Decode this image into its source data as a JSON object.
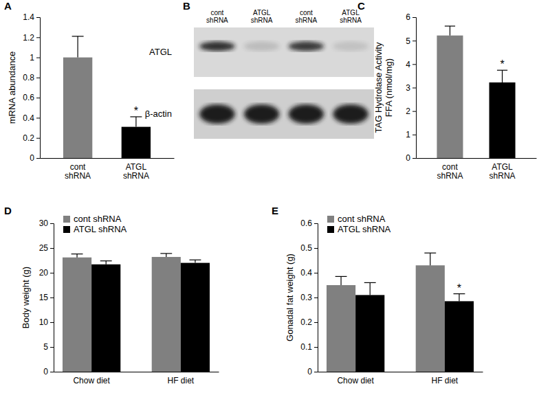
{
  "chart_data": [
    {
      "type": "bar",
      "title": "A",
      "categories": [
        "cont shRNA",
        "ATGL shRNA"
      ],
      "values": [
        1.0,
        0.31
      ],
      "errors": [
        0.21,
        0.1
      ],
      "colors": [
        "#808080",
        "#000000"
      ],
      "y_label": [
        "mRNA abundance"
      ],
      "ylim": [
        0,
        1.4
      ],
      "yticks": [
        0,
        0.2,
        0.4,
        0.6,
        0.8,
        1,
        1.2,
        1.4
      ],
      "annotations": [
        {
          "text": "*",
          "index": 1
        }
      ]
    },
    {
      "type": "bar",
      "title": "C",
      "categories": [
        "cont shRNA",
        "ATGL shRNA"
      ],
      "values": [
        5.22,
        3.22
      ],
      "errors": [
        0.4,
        0.52
      ],
      "colors": [
        "#808080",
        "#000000"
      ],
      "y_label": [
        "TAG Hydrolase Activity",
        "FFA (nmol/mg)"
      ],
      "ylim": [
        0,
        6
      ],
      "yticks": [
        0,
        1,
        2,
        3,
        4,
        5,
        6
      ],
      "annotations": [
        {
          "text": "*",
          "index": 1
        }
      ]
    },
    {
      "type": "bar",
      "title": "D",
      "categories": [
        "Chow diet",
        "HF diet"
      ],
      "series": [
        {
          "name": "cont shRNA",
          "color": "#808080",
          "values": [
            23.1,
            23.2
          ],
          "errors": [
            0.7,
            0.7
          ]
        },
        {
          "name": "ATGL shRNA",
          "color": "#000000",
          "values": [
            21.7,
            22.0
          ],
          "errors": [
            0.7,
            0.6
          ]
        }
      ],
      "y_label": [
        "Body weight (g)"
      ],
      "ylim": [
        0,
        30
      ],
      "yticks": [
        0,
        5,
        10,
        15,
        20,
        25,
        30
      ],
      "legend": "upper left"
    },
    {
      "type": "bar",
      "title": "E",
      "categories": [
        "Chow diet",
        "HF diet"
      ],
      "series": [
        {
          "name": "cont shRNA",
          "color": "#808080",
          "values": [
            0.35,
            0.43
          ],
          "errors": [
            0.035,
            0.05
          ]
        },
        {
          "name": "ATGL shRNA",
          "color": "#000000",
          "values": [
            0.31,
            0.285
          ],
          "errors": [
            0.05,
            0.03
          ]
        }
      ],
      "y_label": [
        "Gonadal fat weight (g)"
      ],
      "ylim": [
        0,
        0.6
      ],
      "yticks": [
        0,
        0.1,
        0.2,
        0.3,
        0.4,
        0.5,
        0.6
      ],
      "legend": "upper left",
      "annotations": [
        {
          "text": "*",
          "index": 1,
          "series": 1
        }
      ]
    }
  ],
  "blot": {
    "title": "B",
    "lanes": [
      "cont shRNA",
      "ATGL shRNA",
      "cont shRNA",
      "ATGL shRNA"
    ],
    "rows": [
      "ATGL",
      "β-actin"
    ],
    "bands": [
      [
        0.9,
        0.15,
        0.85,
        0.12
      ],
      [
        1,
        1,
        1,
        1
      ]
    ]
  }
}
